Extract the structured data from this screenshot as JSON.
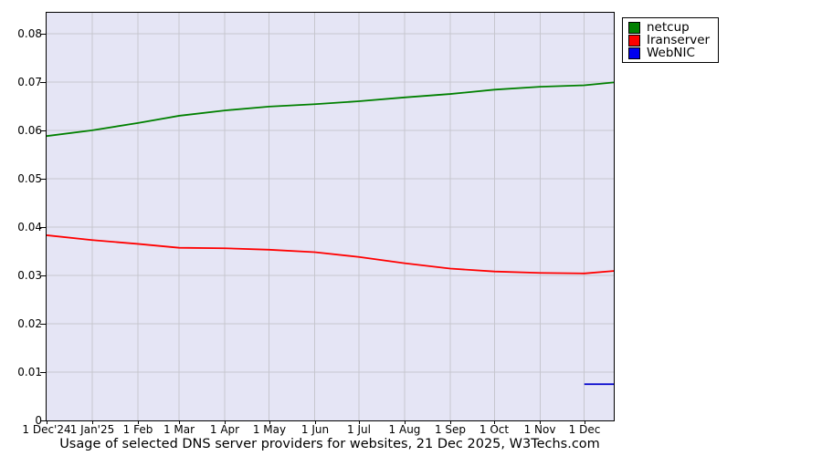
{
  "chart": {
    "caption": "Usage of selected DNS server providers for websites, 21 Dec 2025, W3Techs.com",
    "legend": [
      {
        "label": "netcup",
        "color": "#008000"
      },
      {
        "label": "Iranserver",
        "color": "#ff0000"
      },
      {
        "label": "WebNIC",
        "color": "#0000ee"
      }
    ]
  },
  "chart_data": {
    "type": "line",
    "title": "Usage of selected DNS server providers for websites, 21 Dec 2025, W3Techs.com",
    "legend_position": "outside-top-right",
    "grid": true,
    "plot_background": "#e5e5f5",
    "gridline_color": "#c6c6ce",
    "x_axis": {
      "unit": "days since 1 Dec 2024",
      "max_day": 385,
      "ticks": [
        {
          "label": "1 Dec'24",
          "day": 0
        },
        {
          "label": "1 Jan'25",
          "day": 31
        },
        {
          "label": "1 Feb",
          "day": 62
        },
        {
          "label": "1 Mar",
          "day": 90
        },
        {
          "label": "1 Apr",
          "day": 121
        },
        {
          "label": "1 May",
          "day": 151
        },
        {
          "label": "1 Jun",
          "day": 182
        },
        {
          "label": "1 Jul",
          "day": 212
        },
        {
          "label": "1 Aug",
          "day": 243
        },
        {
          "label": "1 Sep",
          "day": 274
        },
        {
          "label": "1 Oct",
          "day": 304
        },
        {
          "label": "1 Nov",
          "day": 335
        },
        {
          "label": "1 Dec",
          "day": 365
        }
      ]
    },
    "y_axis": {
      "min": 0,
      "plot_top": 0.0843,
      "ticks": [
        {
          "label": "0",
          "value": 0
        },
        {
          "label": "0.01",
          "value": 0.01
        },
        {
          "label": "0.02",
          "value": 0.02
        },
        {
          "label": "0.03",
          "value": 0.03
        },
        {
          "label": "0.04",
          "value": 0.04
        },
        {
          "label": "0.05",
          "value": 0.05
        },
        {
          "label": "0.06",
          "value": 0.06
        },
        {
          "label": "0.07",
          "value": 0.07
        },
        {
          "label": "0.08",
          "value": 0.08
        }
      ]
    },
    "series": [
      {
        "name": "netcup",
        "color": "#008000",
        "x_days": [
          0,
          31,
          62,
          90,
          121,
          151,
          182,
          212,
          243,
          274,
          304,
          335,
          365,
          385
        ],
        "values": [
          0.0588,
          0.06,
          0.0615,
          0.063,
          0.0641,
          0.0649,
          0.0654,
          0.066,
          0.0668,
          0.0675,
          0.0684,
          0.069,
          0.0693,
          0.0699
        ]
      },
      {
        "name": "Iranserver",
        "color": "#ff0000",
        "x_days": [
          0,
          31,
          62,
          90,
          121,
          151,
          182,
          212,
          243,
          274,
          304,
          335,
          365,
          385
        ],
        "values": [
          0.0383,
          0.0373,
          0.0365,
          0.0357,
          0.0356,
          0.0353,
          0.0348,
          0.0338,
          0.0325,
          0.0314,
          0.0308,
          0.0305,
          0.0304,
          0.0309
        ]
      },
      {
        "name": "WebNIC",
        "color": "#0000cc",
        "x_days": [
          365,
          385
        ],
        "values": [
          0.0075,
          0.0075
        ]
      }
    ]
  }
}
